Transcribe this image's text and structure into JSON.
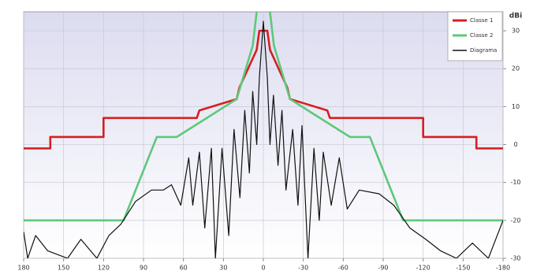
{
  "chart_data": {
    "type": "line",
    "y_axis_label": "dBi",
    "xlim": [
      180,
      -180
    ],
    "xticks": [
      180,
      150,
      120,
      90,
      60,
      30,
      0,
      -30,
      -60,
      -90,
      -120,
      -150,
      -180
    ],
    "ylim": [
      -30,
      35
    ],
    "yticks": [
      -30,
      -20,
      -10,
      0,
      10,
      20,
      30
    ],
    "grid": true,
    "legend_position": "top-right",
    "series": [
      {
        "name": "Classe 1",
        "color": "#d42020",
        "x": [
          180,
          160,
          160,
          120,
          120,
          50,
          48,
          20,
          18,
          5,
          3,
          -3,
          -5,
          -18,
          -20,
          -48,
          -50,
          -120,
          -120,
          -160,
          -160,
          -180
        ],
        "values": [
          -1,
          -1,
          2,
          2,
          7,
          7,
          9,
          12,
          15,
          25,
          30,
          30,
          25,
          15,
          12,
          9,
          7,
          7,
          2,
          2,
          -1,
          -1
        ]
      },
      {
        "name": "Classe 2",
        "color": "#5ec87a",
        "x": [
          180,
          105,
          80,
          65,
          20,
          8,
          5,
          5,
          0,
          -5,
          -5,
          -8,
          -20,
          -65,
          -80,
          -105,
          -180
        ],
        "values": [
          -20,
          -20,
          2,
          2,
          12,
          26,
          35,
          35,
          null,
          35,
          35,
          26,
          12,
          2,
          2,
          -20,
          -20
        ]
      },
      {
        "name": "Diagrama",
        "color": "#111111",
        "x": [
          180,
          177,
          171,
          162,
          147,
          137,
          125,
          116,
          107,
          96,
          84,
          75,
          69,
          62,
          56,
          53,
          48,
          44,
          39,
          36,
          31,
          26,
          22,
          17.6,
          14,
          10.5,
          8,
          5,
          3,
          0,
          -3,
          -5,
          -7.6,
          -11,
          -14,
          -17,
          -22,
          -26,
          -29,
          -33.5,
          -38,
          -42,
          -45,
          -51,
          -57,
          -63,
          -72,
          -87,
          -98,
          -110,
          -122,
          -133,
          -145,
          -157,
          -169,
          -180
        ],
        "values": [
          -23,
          -30,
          -24,
          -28,
          -30,
          -25,
          -30,
          -24,
          -21,
          -15,
          -12,
          -12,
          -10.6,
          -16,
          -3.5,
          -16,
          -2,
          -22,
          -1,
          -30,
          -1,
          -24,
          4,
          -14,
          9,
          -7.5,
          14,
          0,
          17.5,
          32.5,
          17.5,
          0,
          13,
          -5.5,
          9,
          -12,
          4,
          -16,
          5,
          -30,
          -1,
          -20,
          -2,
          -16,
          -3.5,
          -17,
          -12,
          -13,
          -16,
          -22,
          -25,
          -28,
          -30,
          -26,
          -30,
          -20
        ]
      }
    ]
  }
}
